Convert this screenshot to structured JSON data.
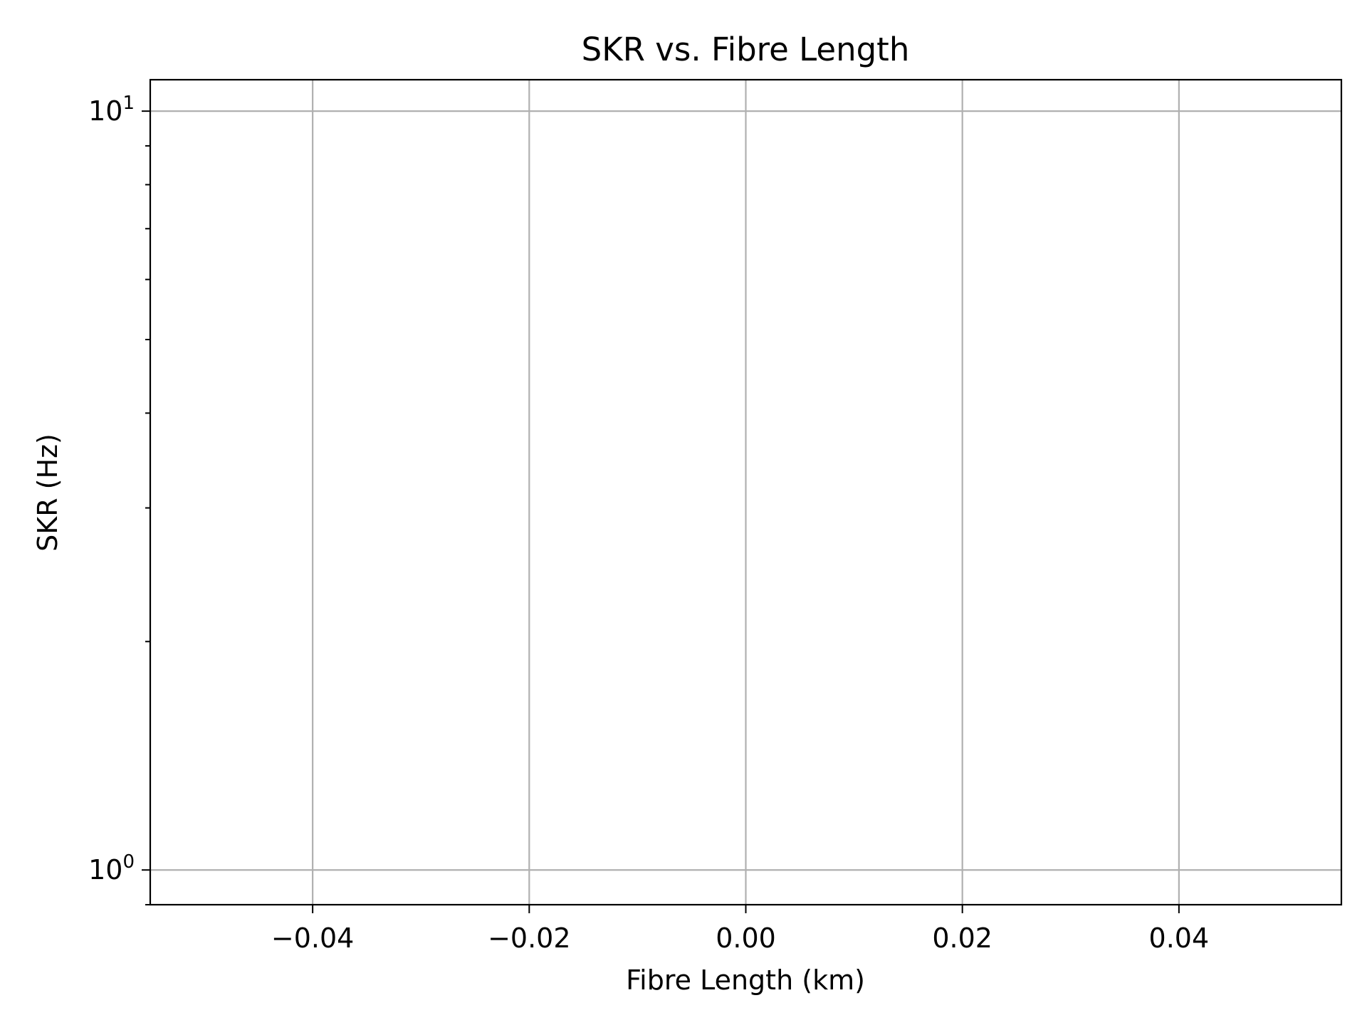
{
  "chart_data": {
    "type": "line",
    "title": "SKR vs. Fibre Length",
    "xlabel": "Fibre Length (km)",
    "ylabel": "SKR (Hz)",
    "xlim": [
      -0.055,
      0.055
    ],
    "ylim": [
      0.9,
      11.0
    ],
    "yscale": "log",
    "grid": true,
    "x_ticks": [
      -0.04,
      -0.02,
      0.0,
      0.02,
      0.04
    ],
    "x_tick_labels": [
      "−0.04",
      "−0.02",
      "0.00",
      "0.02",
      "0.04"
    ],
    "y_ticks": [
      {
        "value": 1,
        "base": "10",
        "exponent": "0"
      },
      {
        "value": 10,
        "base": "10",
        "exponent": "1"
      }
    ],
    "y_minor_ticks": [
      0.9,
      2,
      3,
      4,
      5,
      6,
      7,
      8,
      9
    ],
    "series": [
      {
        "x": [],
        "y": []
      }
    ],
    "colors": {
      "grid": "#b0b0b0",
      "axes": "#000000",
      "background": "#ffffff"
    }
  }
}
